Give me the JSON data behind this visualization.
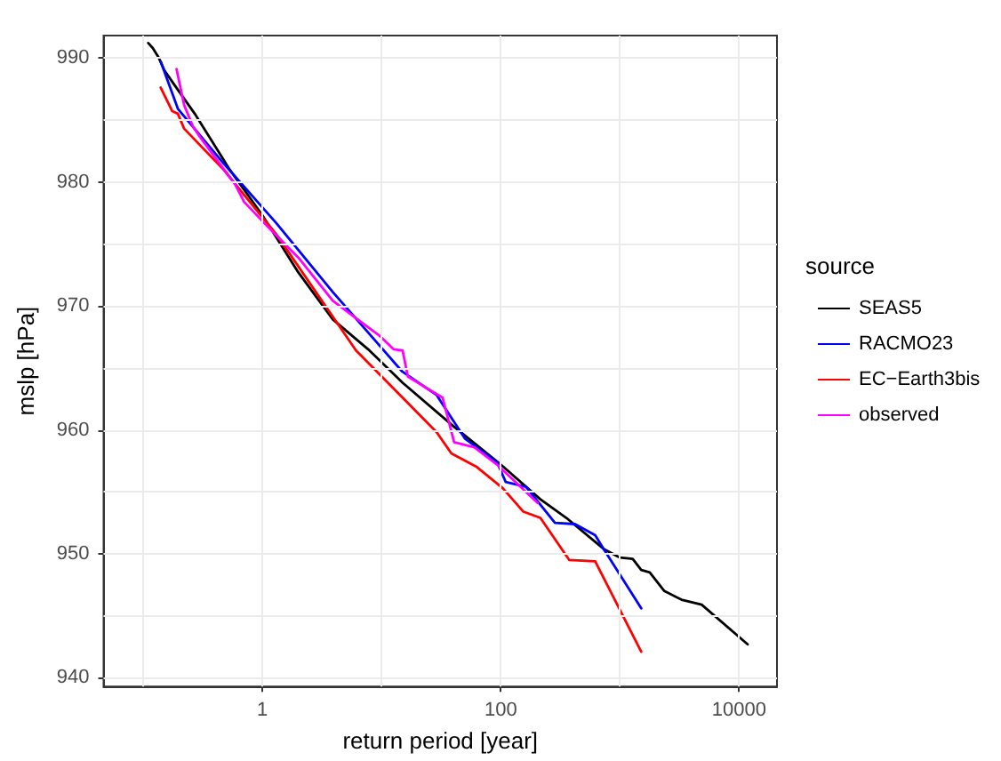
{
  "chart_data": {
    "type": "line",
    "xlabel": "return period [year]",
    "ylabel": "mslp [hPa]",
    "legend_title": "source",
    "log": "x",
    "grid": true,
    "legend": "right",
    "line_style": "solid",
    "marker": "none",
    "xlim": [
      0.0464,
      20800
    ],
    "xticks": [
      {
        "value": 0.1,
        "label": null
      },
      1,
      {
        "value": 10,
        "label": null
      },
      100,
      {
        "value": 1000,
        "label": null
      },
      10000
    ],
    "ylim": [
      939.3,
      991.8
    ],
    "yticks": [
      940,
      {
        "value": 945,
        "label": null
      },
      950,
      {
        "value": 955,
        "label": null
      },
      960,
      {
        "value": 965,
        "label": null
      },
      970,
      {
        "value": 975,
        "label": null
      },
      980,
      {
        "value": 985,
        "label": null
      },
      990
    ],
    "series": [
      {
        "name": "SEAS5",
        "color": "#000000",
        "x": [
          0.11,
          0.12,
          0.135,
          0.15,
          0.18,
          0.27,
          0.53,
          1,
          2,
          3.9,
          7.7,
          15,
          40,
          100,
          215,
          355,
          730,
          1000,
          1280,
          1510,
          1780,
          2360,
          3290,
          4850,
          11800
        ],
        "values": [
          991.2,
          990.8,
          990.0,
          989.0,
          987.9,
          985.5,
          981.0,
          977.3,
          972.7,
          968.9,
          966.5,
          963.8,
          960.3,
          957.2,
          954.4,
          952.9,
          950.4,
          949.7,
          949.6,
          948.7,
          948.5,
          947.0,
          946.3,
          945.9,
          942.7
        ]
      },
      {
        "name": "RACMO23",
        "color": "#0000ff",
        "x": [
          0.14,
          0.195,
          0.47,
          1.3,
          3.9,
          9.6,
          14.9,
          29,
          50,
          93,
          110,
          163,
          285,
          420,
          620,
          730,
          1510
        ],
        "values": [
          989.7,
          985.9,
          981.5,
          976.7,
          971.1,
          966.8,
          964.7,
          962.8,
          959.3,
          957.4,
          955.8,
          955.4,
          952.5,
          952.4,
          951.5,
          950.4,
          945.6
        ]
      },
      {
        "name": "EC−Earth3bis",
        "color": "#ff0000",
        "x": [
          0.14,
          0.175,
          0.195,
          0.22,
          0.47,
          1.3,
          6.1,
          15,
          29,
          38.5,
          63,
          104,
          155,
          215,
          376,
          620,
          1510
        ],
        "values": [
          987.6,
          985.7,
          985.5,
          984.3,
          981.0,
          975.8,
          966.4,
          962.6,
          959.8,
          958.1,
          957.0,
          955.3,
          953.4,
          952.9,
          949.5,
          949.4,
          942.1
        ]
      },
      {
        "name": "observed",
        "color": "#ff00ff",
        "x": [
          0.19,
          0.22,
          0.26,
          0.3,
          0.59,
          0.7,
          1.03,
          2,
          3.9,
          9.6,
          12.6,
          15,
          16.6,
          24.6,
          32.5,
          40.6,
          60,
          93,
          204
        ],
        "values": [
          989.1,
          986.2,
          984.5,
          983.6,
          979.8,
          978.4,
          976.7,
          973.9,
          970.4,
          967.6,
          966.5,
          966.4,
          964.3,
          963.3,
          962.6,
          959.0,
          958.6,
          957.2,
          954.1
        ]
      }
    ]
  }
}
